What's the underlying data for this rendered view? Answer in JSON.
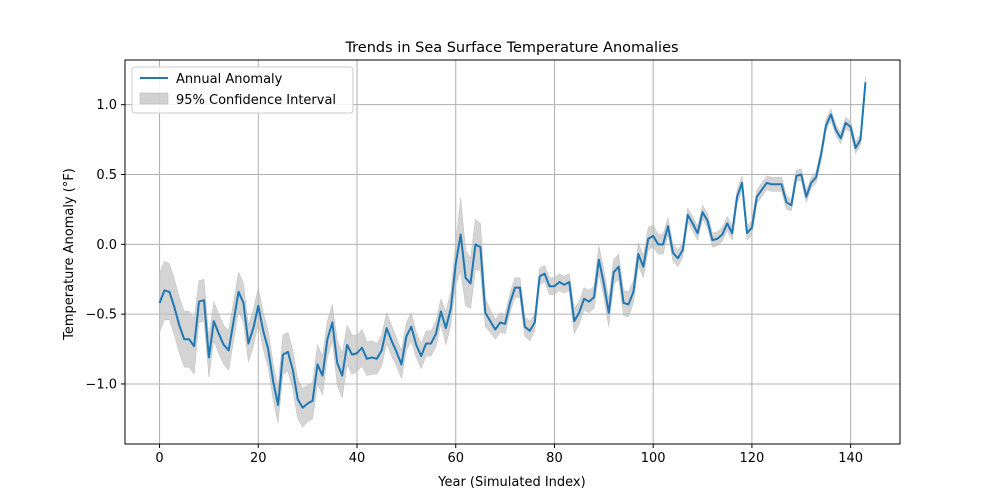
{
  "chart_data": {
    "type": "line",
    "title": "Trends in Sea Surface Temperature Anomalies",
    "xlabel": "Year (Simulated Index)",
    "ylabel": "Temperature Anomaly (°F)",
    "xlim": [
      -7,
      150
    ],
    "ylim": [
      -1.43,
      1.32
    ],
    "xticks": [
      0,
      20,
      40,
      60,
      80,
      100,
      120,
      140
    ],
    "yticks": [
      -1.0,
      -0.5,
      0.0,
      0.5,
      1.0
    ],
    "xtick_labels": [
      "0",
      "20",
      "40",
      "60",
      "80",
      "100",
      "120",
      "140"
    ],
    "ytick_labels": [
      "−1.0",
      "−0.5",
      "0.0",
      "0.5",
      "1.0"
    ],
    "grid": true,
    "legend": {
      "location": "upper-left",
      "entries": [
        {
          "label": "Annual Anomaly",
          "kind": "line"
        },
        {
          "label": "95% Confidence Interval",
          "kind": "band"
        }
      ]
    },
    "colors": {
      "line": "#1f77b4",
      "band": "#bdbdbd",
      "grid": "#b0b0b0"
    },
    "series": [
      {
        "name": "Annual Anomaly",
        "x": [
          0,
          1,
          2,
          3,
          4,
          5,
          6,
          7,
          8,
          9,
          10,
          11,
          12,
          13,
          14,
          15,
          16,
          17,
          18,
          19,
          20,
          21,
          22,
          23,
          24,
          25,
          26,
          27,
          28,
          29,
          30,
          31,
          32,
          33,
          34,
          35,
          36,
          37,
          38,
          39,
          40,
          41,
          42,
          43,
          44,
          45,
          46,
          47,
          48,
          49,
          50,
          51,
          52,
          53,
          54,
          55,
          56,
          57,
          58,
          59,
          60,
          61,
          62,
          63,
          64,
          65,
          66,
          67,
          68,
          69,
          70,
          71,
          72,
          73,
          74,
          75,
          76,
          77,
          78,
          79,
          80,
          81,
          82,
          83,
          84,
          85,
          86,
          87,
          88,
          89,
          90,
          91,
          92,
          93,
          94,
          95,
          96,
          97,
          98,
          99,
          100,
          101,
          102,
          103,
          104,
          105,
          106,
          107,
          108,
          109,
          110,
          111,
          112,
          113,
          114,
          115,
          116,
          117,
          118,
          119,
          120,
          121,
          122,
          123,
          124,
          125,
          126,
          127,
          128,
          129,
          130,
          131,
          132,
          133,
          134,
          135,
          136,
          137,
          138,
          139,
          140,
          141,
          142,
          143
        ],
        "y": [
          -0.42,
          -0.33,
          -0.34,
          -0.45,
          -0.58,
          -0.68,
          -0.68,
          -0.73,
          -0.41,
          -0.4,
          -0.81,
          -0.55,
          -0.64,
          -0.72,
          -0.76,
          -0.55,
          -0.34,
          -0.42,
          -0.71,
          -0.6,
          -0.44,
          -0.62,
          -0.75,
          -0.98,
          -1.15,
          -0.79,
          -0.77,
          -0.9,
          -1.11,
          -1.17,
          -1.14,
          -1.12,
          -0.86,
          -0.94,
          -0.68,
          -0.56,
          -0.85,
          -0.94,
          -0.72,
          -0.79,
          -0.78,
          -0.74,
          -0.82,
          -0.81,
          -0.82,
          -0.76,
          -0.6,
          -0.69,
          -0.77,
          -0.86,
          -0.66,
          -0.59,
          -0.72,
          -0.8,
          -0.71,
          -0.71,
          -0.64,
          -0.48,
          -0.6,
          -0.46,
          -0.14,
          0.07,
          -0.24,
          -0.28,
          0.0,
          -0.02,
          -0.49,
          -0.55,
          -0.61,
          -0.56,
          -0.57,
          -0.42,
          -0.31,
          -0.31,
          -0.59,
          -0.62,
          -0.56,
          -0.23,
          -0.21,
          -0.3,
          -0.3,
          -0.27,
          -0.29,
          -0.27,
          -0.55,
          -0.49,
          -0.39,
          -0.41,
          -0.38,
          -0.11,
          -0.28,
          -0.49,
          -0.2,
          -0.16,
          -0.42,
          -0.43,
          -0.34,
          -0.07,
          -0.16,
          0.04,
          0.06,
          0.0,
          0.0,
          0.13,
          -0.06,
          -0.1,
          -0.04,
          0.21,
          0.15,
          0.08,
          0.23,
          0.17,
          0.03,
          0.04,
          0.07,
          0.15,
          0.08,
          0.34,
          0.44,
          0.08,
          0.12,
          0.34,
          0.39,
          0.44,
          0.43,
          0.43,
          0.43,
          0.3,
          0.28,
          0.49,
          0.5,
          0.34,
          0.44,
          0.48,
          0.64,
          0.85,
          0.93,
          0.82,
          0.76,
          0.87,
          0.84,
          0.69,
          0.75,
          1.16
        ]
      }
    ],
    "confidence_interval": {
      "label": "95% Confidence Interval",
      "half_width": [
        0.21,
        0.21,
        0.2,
        0.2,
        0.2,
        0.2,
        0.2,
        0.2,
        0.15,
        0.15,
        0.14,
        0.14,
        0.14,
        0.14,
        0.14,
        0.14,
        0.14,
        0.14,
        0.13,
        0.13,
        0.13,
        0.13,
        0.13,
        0.13,
        0.13,
        0.14,
        0.14,
        0.14,
        0.14,
        0.14,
        0.13,
        0.13,
        0.14,
        0.14,
        0.13,
        0.13,
        0.16,
        0.16,
        0.14,
        0.14,
        0.13,
        0.13,
        0.12,
        0.12,
        0.11,
        0.11,
        0.11,
        0.11,
        0.1,
        0.1,
        0.1,
        0.1,
        0.09,
        0.09,
        0.09,
        0.09,
        0.09,
        0.09,
        0.12,
        0.12,
        0.15,
        0.26,
        0.2,
        0.18,
        0.18,
        0.17,
        0.1,
        0.08,
        0.07,
        0.07,
        0.07,
        0.07,
        0.07,
        0.07,
        0.07,
        0.07,
        0.06,
        0.06,
        0.06,
        0.06,
        0.06,
        0.06,
        0.06,
        0.06,
        0.09,
        0.08,
        0.08,
        0.08,
        0.08,
        0.1,
        0.1,
        0.1,
        0.09,
        0.09,
        0.09,
        0.09,
        0.08,
        0.08,
        0.08,
        0.08,
        0.08,
        0.07,
        0.07,
        0.06,
        0.06,
        0.06,
        0.05,
        0.05,
        0.05,
        0.05,
        0.05,
        0.05,
        0.05,
        0.05,
        0.05,
        0.05,
        0.05,
        0.05,
        0.05,
        0.05,
        0.05,
        0.05,
        0.05,
        0.05,
        0.05,
        0.05,
        0.05,
        0.05,
        0.04,
        0.04,
        0.04,
        0.04,
        0.04,
        0.04,
        0.04,
        0.04,
        0.04,
        0.04,
        0.04,
        0.04,
        0.04,
        0.04,
        0.04,
        0.04
      ]
    }
  }
}
